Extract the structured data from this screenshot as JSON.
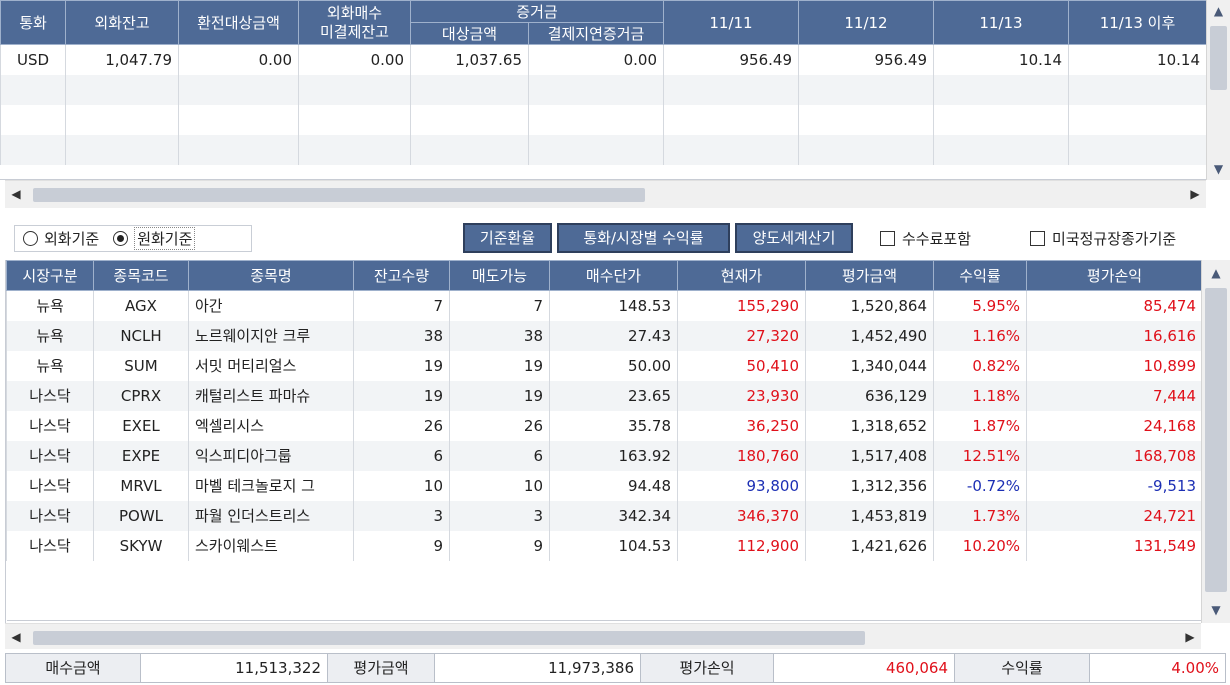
{
  "currency_table": {
    "headers": {
      "currency": "통화",
      "fx_balance": "외화잔고",
      "exchange_target": "환전대상금액",
      "fx_buy_unsettled_1": "외화매수",
      "fx_buy_unsettled_2": "미결제잔고",
      "margin": "증거금",
      "margin_target": "대상금액",
      "margin_delay": "결제지연증거금",
      "d1": "11/11",
      "d2": "11/12",
      "d3": "11/13",
      "d4": "11/13 이후"
    },
    "rows": [
      {
        "currency": "USD",
        "fx_balance": "1,047.79",
        "exchange_target": "0.00",
        "unsettled": "0.00",
        "margin_target": "1,037.65",
        "margin_delay": "0.00",
        "d1": "956.49",
        "d2": "956.49",
        "d3": "10.14",
        "d4": "10.14"
      }
    ]
  },
  "toolbar": {
    "radio_fx": "외화기준",
    "radio_krw": "원화기준",
    "btn_base_rate": "기준환율",
    "btn_return_by_market": "통화/시장별 수익률",
    "btn_transfer_tax": "양도세계산기",
    "chk_fee": "수수료포함",
    "chk_us_close": "미국정규장종가기준"
  },
  "stock_table": {
    "headers": [
      "시장구분",
      "종목코드",
      "종목명",
      "잔고수량",
      "매도가능",
      "매수단가",
      "현재가",
      "평가금액",
      "수익률",
      "평가손익"
    ],
    "rows": [
      {
        "market": "뉴욕",
        "code": "AGX",
        "name": "아간",
        "qty": "7",
        "sellable": "7",
        "avg_price": "148.53",
        "price": "155,290",
        "eval": "1,520,864",
        "rate": "5.95%",
        "pl": "85,474",
        "sign": "up"
      },
      {
        "market": "뉴욕",
        "code": "NCLH",
        "name": "노르웨이지안 크루",
        "qty": "38",
        "sellable": "38",
        "avg_price": "27.43",
        "price": "27,320",
        "eval": "1,452,490",
        "rate": "1.16%",
        "pl": "16,616",
        "sign": "up"
      },
      {
        "market": "뉴욕",
        "code": "SUM",
        "name": "서밋 머티리얼스",
        "qty": "19",
        "sellable": "19",
        "avg_price": "50.00",
        "price": "50,410",
        "eval": "1,340,044",
        "rate": "0.82%",
        "pl": "10,899",
        "sign": "up"
      },
      {
        "market": "나스닥",
        "code": "CPRX",
        "name": "캐털리스트 파마슈",
        "qty": "19",
        "sellable": "19",
        "avg_price": "23.65",
        "price": "23,930",
        "eval": "636,129",
        "rate": "1.18%",
        "pl": "7,444",
        "sign": "up"
      },
      {
        "market": "나스닥",
        "code": "EXEL",
        "name": "엑셀리시스",
        "qty": "26",
        "sellable": "26",
        "avg_price": "35.78",
        "price": "36,250",
        "eval": "1,318,652",
        "rate": "1.87%",
        "pl": "24,168",
        "sign": "up"
      },
      {
        "market": "나스닥",
        "code": "EXPE",
        "name": "익스피디아그룹",
        "qty": "6",
        "sellable": "6",
        "avg_price": "163.92",
        "price": "180,760",
        "eval": "1,517,408",
        "rate": "12.51%",
        "pl": "168,708",
        "sign": "up"
      },
      {
        "market": "나스닥",
        "code": "MRVL",
        "name": "마벨 테크놀로지 그",
        "qty": "10",
        "sellable": "10",
        "avg_price": "94.48",
        "price": "93,800",
        "eval": "1,312,356",
        "rate": "-0.72%",
        "pl": "-9,513",
        "sign": "down"
      },
      {
        "market": "나스닥",
        "code": "POWL",
        "name": "파월 인더스트리스",
        "qty": "3",
        "sellable": "3",
        "avg_price": "342.34",
        "price": "346,370",
        "eval": "1,453,819",
        "rate": "1.73%",
        "pl": "24,721",
        "sign": "up"
      },
      {
        "market": "나스닥",
        "code": "SKYW",
        "name": "스카이웨스트",
        "qty": "9",
        "sellable": "9",
        "avg_price": "104.53",
        "price": "112,900",
        "eval": "1,421,626",
        "rate": "10.20%",
        "pl": "131,549",
        "sign": "up"
      }
    ]
  },
  "summary": {
    "buy_amount_label": "매수금액",
    "buy_amount": "11,513,322",
    "eval_amount_label": "평가금액",
    "eval_amount": "11,973,386",
    "eval_pl_label": "평가손익",
    "eval_pl": "460,064",
    "return_label": "수익률",
    "return_rate": "4.00%"
  },
  "colors": {
    "header_bg": "#4e6a96",
    "up": "#e0101a",
    "down": "#1c2fb4"
  },
  "icons": [
    "scroll-up-arrow-icon",
    "scroll-down-arrow-icon",
    "scroll-left-arrow-icon",
    "scroll-right-arrow-icon"
  ]
}
